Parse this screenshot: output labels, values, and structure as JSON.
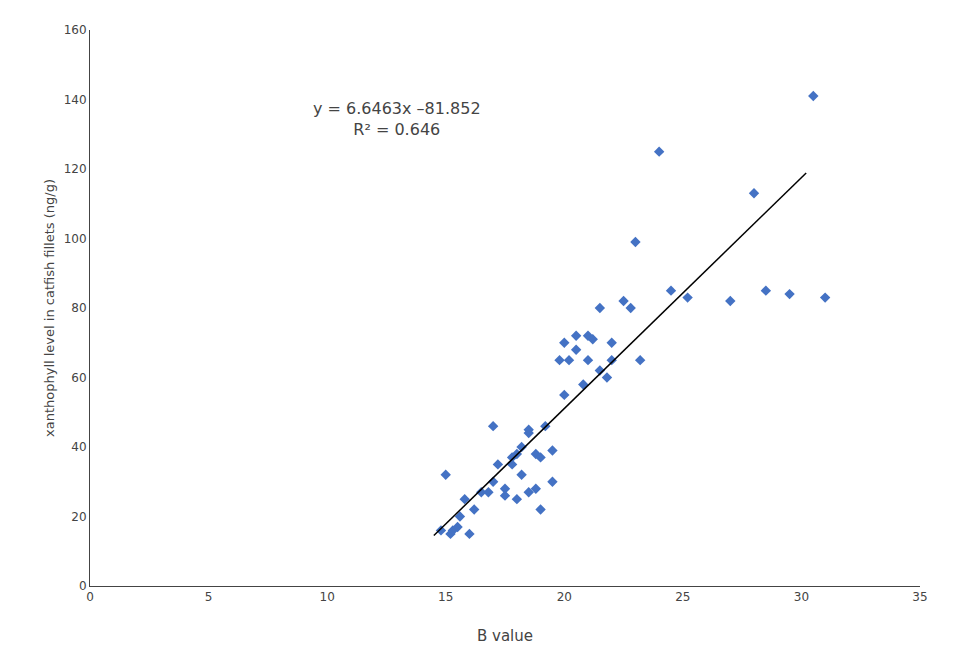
{
  "chart_data": {
    "type": "scatter",
    "xlabel": "B value",
    "ylabel": "xanthophyll level in catfish fillets (ng/g)",
    "annotations": [
      "y = 6.6463x –81.852",
      "R² = 0.646"
    ],
    "series": [
      {
        "type": "scatter",
        "marker": "diamond",
        "color": "#4472C4",
        "x": [
          14.8,
          15.0,
          15.2,
          15.3,
          15.5,
          15.6,
          15.8,
          16.0,
          16.2,
          16.5,
          16.8,
          17.0,
          17.0,
          17.2,
          17.5,
          17.5,
          17.8,
          17.8,
          18.0,
          18.0,
          18.2,
          18.2,
          18.5,
          18.5,
          18.5,
          18.8,
          18.8,
          19.0,
          19.0,
          19.2,
          19.5,
          19.5,
          19.8,
          20.0,
          20.0,
          20.2,
          20.5,
          20.5,
          20.8,
          21.0,
          21.0,
          21.2,
          21.5,
          21.5,
          21.8,
          22.0,
          22.0,
          22.5,
          22.8,
          23.0,
          23.2,
          24.0,
          24.5,
          25.2,
          27.0,
          28.0,
          28.5,
          29.5,
          30.5,
          31.0
        ],
        "values": [
          16,
          32,
          15,
          16,
          17,
          20,
          25,
          15,
          22,
          27,
          27,
          30,
          46,
          35,
          26,
          28,
          37,
          35,
          25,
          38,
          40,
          32,
          44,
          45,
          27,
          38,
          28,
          37,
          22,
          46,
          30,
          39,
          65,
          55,
          70,
          65,
          72,
          68,
          58,
          65,
          72,
          71,
          80,
          62,
          60,
          70,
          65,
          82,
          80,
          99,
          65,
          125,
          85,
          83,
          82,
          113,
          85,
          84,
          141,
          83
        ]
      },
      {
        "type": "line",
        "line_style": "solid",
        "color": "#000000",
        "x": [
          14.5,
          30.2
        ],
        "values": [
          14.51935,
          118.86626
        ]
      }
    ],
    "xlim": [
      0,
      35
    ],
    "ylim": [
      0,
      160
    ],
    "xticks": [
      0,
      5,
      10,
      15,
      20,
      25,
      30,
      35
    ],
    "yticks": [
      0,
      20,
      40,
      60,
      80,
      100,
      120,
      140,
      160
    ],
    "grid": false
  }
}
